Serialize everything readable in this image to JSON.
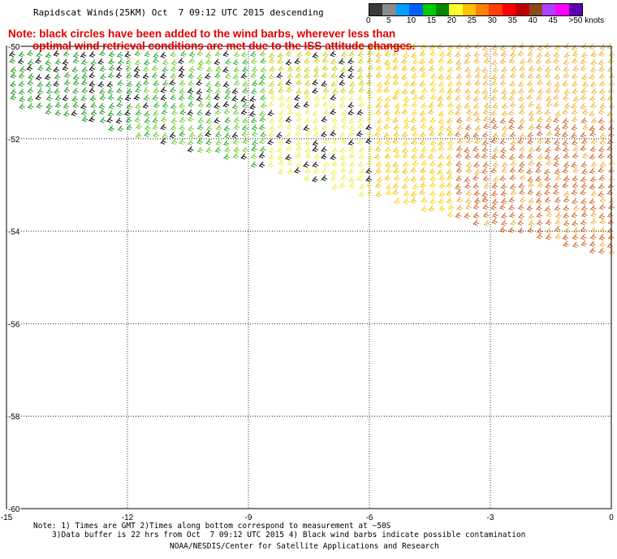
{
  "header": {
    "title": "Rapidscat Winds(25KM) Oct  7 09:12 UTC 2015 descending"
  },
  "note": {
    "line1": "Note: black circles have been added to the wind barbs, wherever less than",
    "line2": "optimal wind retrieval conditions are met due to the ISS attitude changes."
  },
  "colorbar": {
    "colors": [
      "#3a3a3a",
      "#8c8c8c",
      "#00a0ff",
      "#0060ff",
      "#00cc00",
      "#008800",
      "#ffff30",
      "#ffc000",
      "#ff8000",
      "#ff4000",
      "#ff0000",
      "#c00000",
      "#8a4a20",
      "#b040ff",
      "#ff00ff",
      "#6000b0"
    ],
    "labels": [
      "0",
      "5",
      "10",
      "15",
      "20",
      "25",
      "30",
      "35",
      "40",
      "45",
      ">50 knots"
    ]
  },
  "map": {
    "lon_ticks": [
      "-15",
      "-12",
      "-9",
      "-6",
      "-3",
      "0"
    ],
    "lat_ticks": [
      "-50",
      "-52",
      "-54",
      "-56",
      "-58",
      "-60"
    ],
    "lon_range": [
      -15,
      0
    ],
    "lat_range": [
      -50,
      -60
    ],
    "grid": "dotted"
  },
  "footer": {
    "line1": "Note: 1) Times are GMT 2)Times along bottom correspond to measurement at ~50S",
    "line2": "3)Data buffer is 22 hrs from Oct  7 09:12 UTC 2015 4) Black wind barbs indicate possible contamination",
    "line3": "NOAA/NESDIS/Center for Satellite Applications and Research"
  }
}
